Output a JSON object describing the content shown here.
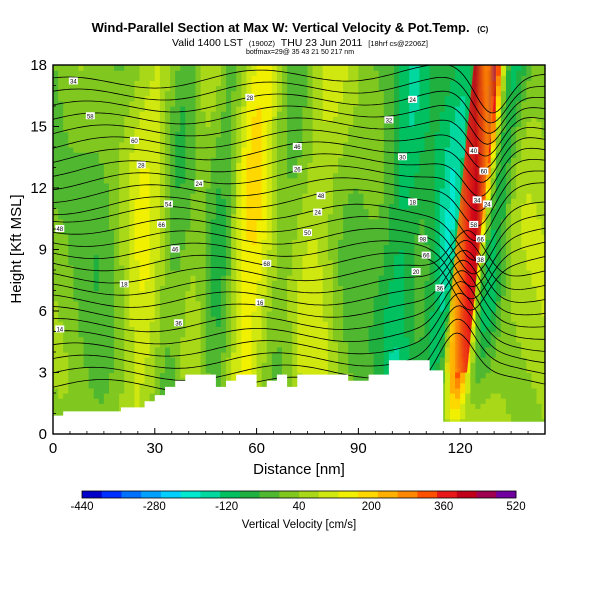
{
  "chart_data": {
    "type": "heatmap",
    "title": "Wind-Parallel Section at Max W: Vertical Velocity & Pot.Temp.",
    "title_mark": "(C)",
    "subtitle": "Valid 1400 LST",
    "subtitle_small_1": "(1900Z)",
    "subtitle_mid": "THU 23 Jun 2011",
    "subtitle_small_2": "[18hrf cs@2206Z]",
    "subtitle_line3": "botfmax=29@ 35 43 21 50 217 nm",
    "xlabel": "Distance [nm]",
    "ylabel": "Height [Kft MSL]",
    "xlim": [
      0,
      145
    ],
    "ylim": [
      0,
      18
    ],
    "x_ticks": [
      "0",
      "30",
      "60",
      "90",
      "120"
    ],
    "y_ticks": [
      "0",
      "3",
      "6",
      "9",
      "12",
      "15",
      "18"
    ],
    "colorbar": {
      "label": "Vertical Velocity [cm/s]",
      "min": -440,
      "max": 520,
      "tick_labels": [
        "-440",
        "-280",
        "-120",
        "40",
        "200",
        "360",
        "520"
      ],
      "colors": [
        "#0000c8",
        "#0030ff",
        "#0070ff",
        "#00a0ff",
        "#00cfff",
        "#00e8d0",
        "#00d8a0",
        "#00c060",
        "#20b040",
        "#50b830",
        "#80c820",
        "#a8d818",
        "#d0e810",
        "#f0f000",
        "#ffd800",
        "#ffb000",
        "#ff8800",
        "#ff5000",
        "#e81818",
        "#c00018",
        "#a00050",
        "#7000a0"
      ]
    },
    "terrain_profile_nm_kft": [
      [
        0,
        0.9
      ],
      [
        3,
        0.9
      ],
      [
        3,
        1.1
      ],
      [
        20,
        1.1
      ],
      [
        20,
        1.3
      ],
      [
        27,
        1.3
      ],
      [
        27,
        1.6
      ],
      [
        30,
        1.6
      ],
      [
        30,
        1.9
      ],
      [
        33,
        1.9
      ],
      [
        33,
        2.3
      ],
      [
        36,
        2.3
      ],
      [
        36,
        2.6
      ],
      [
        39,
        2.6
      ],
      [
        39,
        2.9
      ],
      [
        48,
        2.9
      ],
      [
        48,
        2.3
      ],
      [
        51,
        2.3
      ],
      [
        51,
        2.6
      ],
      [
        54,
        2.6
      ],
      [
        54,
        2.9
      ],
      [
        60,
        2.9
      ],
      [
        60,
        2.3
      ],
      [
        63,
        2.3
      ],
      [
        63,
        2.6
      ],
      [
        66,
        2.6
      ],
      [
        66,
        2.9
      ],
      [
        69,
        2.9
      ],
      [
        69,
        2.3
      ],
      [
        72,
        2.3
      ],
      [
        72,
        2.9
      ],
      [
        87,
        2.9
      ],
      [
        87,
        2.6
      ],
      [
        93,
        2.6
      ],
      [
        93,
        2.9
      ],
      [
        99,
        2.9
      ],
      [
        99,
        3.6
      ],
      [
        111,
        3.6
      ],
      [
        111,
        3.1
      ],
      [
        115,
        3.1
      ],
      [
        115,
        0.6
      ],
      [
        145,
        0.6
      ]
    ],
    "contour_labels": [
      {
        "text": "34",
        "x": 6,
        "y": 17.2
      },
      {
        "text": "58",
        "x": 11,
        "y": 15.5
      },
      {
        "text": "60",
        "x": 24,
        "y": 14.3
      },
      {
        "text": "28",
        "x": 26,
        "y": 13.1
      },
      {
        "text": "54",
        "x": 34,
        "y": 11.2
      },
      {
        "text": "24",
        "x": 43,
        "y": 12.2
      },
      {
        "text": "66",
        "x": 32,
        "y": 10.2
      },
      {
        "text": "48",
        "x": 2,
        "y": 10.0
      },
      {
        "text": "46",
        "x": 36,
        "y": 9.0
      },
      {
        "text": "18",
        "x": 21,
        "y": 7.3
      },
      {
        "text": "14",
        "x": 2,
        "y": 5.1
      },
      {
        "text": "36",
        "x": 37,
        "y": 5.4
      },
      {
        "text": "28",
        "x": 58,
        "y": 16.4
      },
      {
        "text": "46",
        "x": 72,
        "y": 14.0
      },
      {
        "text": "26",
        "x": 72,
        "y": 12.9
      },
      {
        "text": "48",
        "x": 79,
        "y": 11.6
      },
      {
        "text": "24",
        "x": 78,
        "y": 10.8
      },
      {
        "text": "50",
        "x": 75,
        "y": 9.8
      },
      {
        "text": "68",
        "x": 63,
        "y": 8.3
      },
      {
        "text": "16",
        "x": 61,
        "y": 6.4
      },
      {
        "text": "24",
        "x": 106,
        "y": 16.3
      },
      {
        "text": "32",
        "x": 99,
        "y": 15.3
      },
      {
        "text": "30",
        "x": 103,
        "y": 13.5
      },
      {
        "text": "18",
        "x": 106,
        "y": 11.3
      },
      {
        "text": "98",
        "x": 109,
        "y": 9.5
      },
      {
        "text": "66",
        "x": 110,
        "y": 8.7
      },
      {
        "text": "20",
        "x": 107,
        "y": 7.9
      },
      {
        "text": "36",
        "x": 114,
        "y": 7.1
      },
      {
        "text": "40",
        "x": 124,
        "y": 13.8
      },
      {
        "text": "60",
        "x": 127,
        "y": 12.8
      },
      {
        "text": "34",
        "x": 125,
        "y": 11.4
      },
      {
        "text": "24",
        "x": 128,
        "y": 11.2
      },
      {
        "text": "58",
        "x": 124,
        "y": 10.2
      },
      {
        "text": "66",
        "x": 126,
        "y": 9.5
      },
      {
        "text": "38",
        "x": 126,
        "y": 8.5
      }
    ]
  }
}
